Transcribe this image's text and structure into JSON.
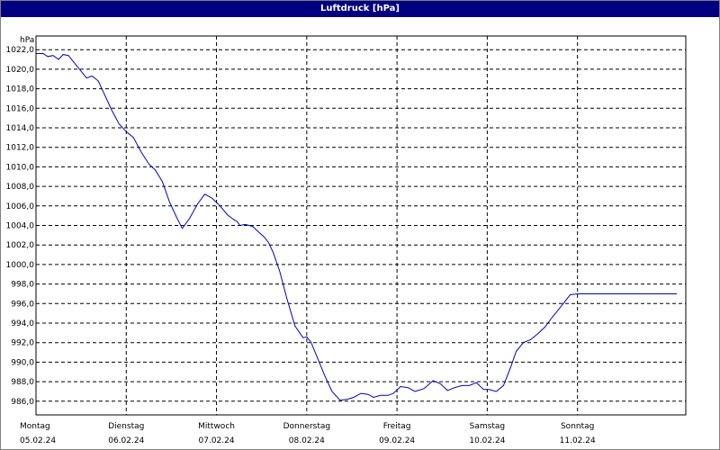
{
  "window": {
    "title": "Luftdruck [hPa]"
  },
  "chart_data": {
    "type": "line",
    "title": "Luftdruck [hPa]",
    "ylabel": "hPa",
    "xlabel": "",
    "ylim": [
      984.6,
      1023.4
    ],
    "xlim": [
      0,
      7.2
    ],
    "grid": true,
    "y_ticks": [
      "986,0",
      "988,0",
      "990,0",
      "992,0",
      "994,0",
      "996,0",
      "998,0",
      "1000,0",
      "1002,0",
      "1004,0",
      "1006,0",
      "1008,0",
      "1010,0",
      "1012,0",
      "1014,0",
      "1016,0",
      "1018,0",
      "1020,0",
      "1022,0"
    ],
    "x_ticks": [
      {
        "day": "Montag",
        "date": "05.02.24"
      },
      {
        "day": "Dienstag",
        "date": "06.02.24"
      },
      {
        "day": "Mittwoch",
        "date": "07.02.24"
      },
      {
        "day": "Donnerstag",
        "date": "08.02.24"
      },
      {
        "day": "Freitag",
        "date": "09.02.24"
      },
      {
        "day": "Samstag",
        "date": "10.02.24"
      },
      {
        "day": "Sonntag",
        "date": "11.02.24"
      }
    ],
    "series": [
      {
        "color": "#0000c0",
        "x": [
          0.0,
          0.08,
          0.13,
          0.19,
          0.25,
          0.3,
          0.36,
          0.42,
          0.5,
          0.56,
          0.62,
          0.69,
          0.75,
          0.84,
          0.92,
          1.0,
          1.08,
          1.16,
          1.25,
          1.32,
          1.4,
          1.48,
          1.56,
          1.62,
          1.7,
          1.79,
          1.87,
          1.95,
          2.04,
          2.12,
          2.19,
          2.23,
          2.26,
          2.32,
          2.4,
          2.47,
          2.53,
          2.58,
          2.63,
          2.7,
          2.78,
          2.87,
          2.96,
          3.0,
          3.05,
          3.12,
          3.2,
          3.28,
          3.37,
          3.45,
          3.52,
          3.6,
          3.68,
          3.74,
          3.82,
          3.9,
          3.96,
          4.04,
          4.12,
          4.2,
          4.3,
          4.4,
          4.48,
          4.56,
          4.64,
          4.72,
          4.8,
          4.88,
          4.96,
          5.02,
          5.1,
          5.18,
          5.26,
          5.32,
          5.4,
          5.48,
          5.56,
          5.64,
          5.72,
          5.8,
          5.86,
          5.92,
          6.0,
          6.06,
          6.12,
          6.2,
          6.28,
          6.36,
          6.44,
          6.52,
          6.6,
          6.7,
          6.8,
          6.9,
          7.0,
          7.1
        ],
        "y": [
          1021.6,
          1021.6,
          1021.3,
          1021.4,
          1021.0,
          1021.5,
          1021.4,
          1020.7,
          1019.8,
          1019.1,
          1019.3,
          1018.8,
          1017.6,
          1015.8,
          1014.4,
          1013.6,
          1013.0,
          1011.6,
          1010.3,
          1009.7,
          1008.5,
          1006.4,
          1004.8,
          1003.7,
          1004.7,
          1006.2,
          1007.2,
          1006.8,
          1006.0,
          1005.1,
          1004.6,
          1004.4,
          1004.0,
          1004.1,
          1003.9,
          1003.3,
          1002.8,
          1002.2,
          1001.2,
          999.3,
          996.5,
          993.7,
          992.5,
          992.6,
          992.0,
          990.4,
          988.6,
          987.0,
          986.1,
          986.2,
          986.4,
          986.8,
          986.7,
          986.4,
          986.6,
          986.6,
          986.8,
          987.5,
          987.4,
          987.0,
          987.3,
          988.1,
          987.8,
          987.1,
          987.4,
          987.6,
          987.6,
          987.9,
          987.2,
          987.2,
          987.0,
          987.6,
          989.5,
          991.1,
          992.0,
          992.3,
          992.9,
          993.6,
          994.6,
          995.5,
          996.2,
          996.9,
          997.0,
          997.0,
          997.0,
          997.0,
          997.0,
          997.0,
          997.0,
          997.0,
          997.0,
          997.0,
          997.0,
          997.0,
          997.0,
          997.0
        ]
      }
    ]
  }
}
